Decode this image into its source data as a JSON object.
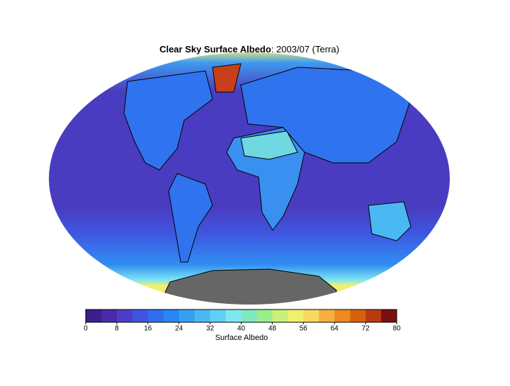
{
  "title": {
    "main": "Clear Sky Surface Albedo",
    "detail": ": 2003/07 (Terra)"
  },
  "colorbar": {
    "range": [
      0,
      80
    ],
    "ticks": [
      0,
      8,
      16,
      24,
      32,
      40,
      48,
      56,
      64,
      72,
      80
    ],
    "label": "Surface Albedo",
    "colors": [
      "#3b1f8a",
      "#4a2aa8",
      "#4b3fc8",
      "#3f55e0",
      "#2f6fee",
      "#2a86f2",
      "#35a0f2",
      "#4ab8f2",
      "#5fd0f4",
      "#7fe6f2",
      "#7fe8c0",
      "#9aef8a",
      "#c8f07a",
      "#f0f070",
      "#f8d860",
      "#f4b040",
      "#ee8a20",
      "#d86010",
      "#b83a10",
      "#7a1010"
    ]
  }
}
